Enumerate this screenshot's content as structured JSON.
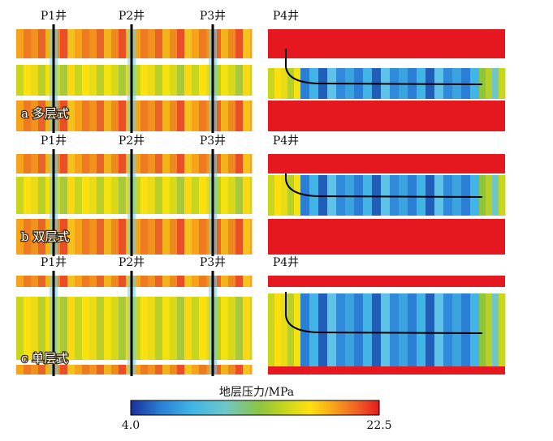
{
  "panels": [
    {
      "label": "a 多层式",
      "well_labels": [
        "P1井",
        "P2井",
        "P3井"
      ],
      "horiz_well_label": "P4井"
    },
    {
      "label": "b 双层式",
      "well_labels": [
        "P1井",
        "P2井",
        "P3井"
      ],
      "horiz_well_label": "P4井"
    },
    {
      "label": "c 单层式",
      "well_labels": [
        "P1井",
        "P2井",
        "P3井"
      ],
      "horiz_well_label": "P4井"
    }
  ],
  "colorbar": {
    "title": "地层压力/MPa",
    "min_label": "4.0",
    "max_label": "22.5",
    "min": 4.0,
    "max": 22.5,
    "colors": [
      "#1a2f9a",
      "#2a7fd4",
      "#41b6e6",
      "#6ec7c9",
      "#8cc63f",
      "#c8d61e",
      "#fde10f",
      "#f7a21b",
      "#ef5a24",
      "#e41a1c"
    ]
  },
  "colors": {
    "overpressure_red": "#e5171f",
    "well_line": "#000000",
    "well_glow": "#6ed3f2"
  }
}
